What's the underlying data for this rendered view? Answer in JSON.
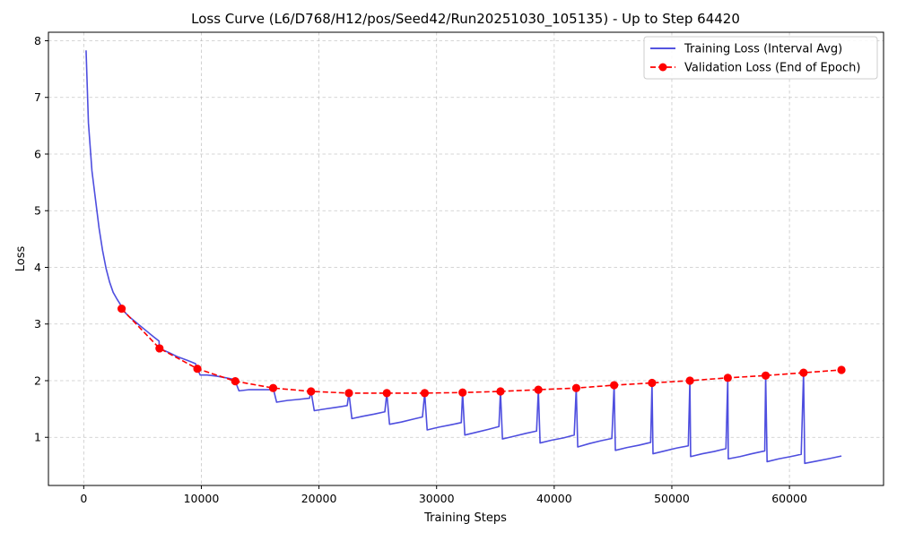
{
  "chart_data": {
    "type": "line",
    "title": "Loss Curve (L6/D768/H12/pos/Seed42/Run20251030_105135) - Up to Step 64420",
    "xlabel": "Training Steps",
    "ylabel": "Loss",
    "xlim": [
      -3000,
      68000
    ],
    "ylim": [
      0.15,
      8.15
    ],
    "x_ticks": [
      0,
      10000,
      20000,
      30000,
      40000,
      50000,
      60000
    ],
    "x_tick_labels": [
      "0",
      "10000",
      "20000",
      "30000",
      "40000",
      "50000",
      "60000"
    ],
    "y_ticks": [
      1,
      2,
      3,
      4,
      5,
      6,
      7,
      8
    ],
    "y_tick_labels": [
      "1",
      "2",
      "3",
      "4",
      "5",
      "6",
      "7",
      "8"
    ],
    "grid": true,
    "legend_position": "top-right",
    "series": [
      {
        "name": "Training Loss (Interval Avg)",
        "color": "#3b3bdb",
        "style": "solid",
        "x": [
          200,
          400,
          700,
          1000,
          1300,
          1600,
          1900,
          2200,
          2500,
          2800,
          3100,
          3221,
          3800,
          4500,
          5200,
          5900,
          6400,
          6442,
          7200,
          8000,
          8800,
          9500,
          9663,
          9900,
          10500,
          11300,
          12100,
          12800,
          12884,
          13200,
          14000,
          15000,
          16000,
          16105,
          16400,
          17300,
          18300,
          19200,
          19326,
          19600,
          20500,
          21500,
          22400,
          22547,
          22800,
          23700,
          24700,
          25600,
          25768,
          26000,
          27000,
          28000,
          28800,
          28989,
          29200,
          30200,
          31200,
          32100,
          32210,
          32400,
          33400,
          34400,
          35300,
          35431,
          35600,
          36600,
          37600,
          38500,
          38652,
          38800,
          39800,
          40800,
          41700,
          41873,
          42000,
          43000,
          44000,
          44900,
          45094,
          45200,
          46200,
          47200,
          48200,
          48315,
          48400,
          49400,
          50400,
          51400,
          51536,
          51600,
          52600,
          53600,
          54600,
          54757,
          54800,
          55800,
          56800,
          57900,
          57978,
          58100,
          59100,
          60100,
          61000,
          61199,
          61300,
          62300,
          63300,
          64420
        ],
        "y": [
          7.83,
          6.55,
          5.7,
          5.2,
          4.7,
          4.3,
          3.98,
          3.74,
          3.56,
          3.45,
          3.35,
          3.27,
          3.14,
          3.02,
          2.9,
          2.78,
          2.7,
          2.57,
          2.5,
          2.42,
          2.36,
          2.3,
          2.21,
          2.1,
          2.1,
          2.08,
          2.05,
          2.02,
          1.99,
          1.82,
          1.84,
          1.84,
          1.84,
          1.87,
          1.62,
          1.65,
          1.67,
          1.69,
          1.81,
          1.47,
          1.5,
          1.53,
          1.56,
          1.78,
          1.33,
          1.37,
          1.41,
          1.45,
          1.78,
          1.23,
          1.27,
          1.32,
          1.36,
          1.78,
          1.13,
          1.18,
          1.22,
          1.26,
          1.79,
          1.04,
          1.09,
          1.14,
          1.19,
          1.81,
          0.97,
          1.02,
          1.07,
          1.11,
          1.84,
          0.9,
          0.95,
          0.99,
          1.04,
          1.87,
          0.83,
          0.89,
          0.94,
          0.98,
          1.92,
          0.77,
          0.82,
          0.86,
          0.91,
          1.96,
          0.71,
          0.76,
          0.81,
          0.85,
          2.0,
          0.66,
          0.71,
          0.75,
          0.8,
          2.05,
          0.62,
          0.66,
          0.71,
          0.76,
          2.09,
          0.57,
          0.62,
          0.66,
          0.7,
          2.14,
          0.54,
          0.58,
          0.62,
          0.67
        ]
      },
      {
        "name": "Validation Loss (End of Epoch)",
        "color": "#ff0000",
        "style": "dashed",
        "marker": "circle",
        "x": [
          3221,
          6442,
          9663,
          12884,
          16105,
          19326,
          22547,
          25768,
          28989,
          32210,
          35431,
          38652,
          41873,
          45094,
          48315,
          51536,
          54757,
          57978,
          61199,
          64420
        ],
        "y": [
          3.27,
          2.57,
          2.21,
          1.99,
          1.87,
          1.81,
          1.78,
          1.78,
          1.78,
          1.79,
          1.81,
          1.84,
          1.87,
          1.92,
          1.96,
          2.0,
          2.05,
          2.09,
          2.14,
          2.19
        ]
      }
    ]
  }
}
